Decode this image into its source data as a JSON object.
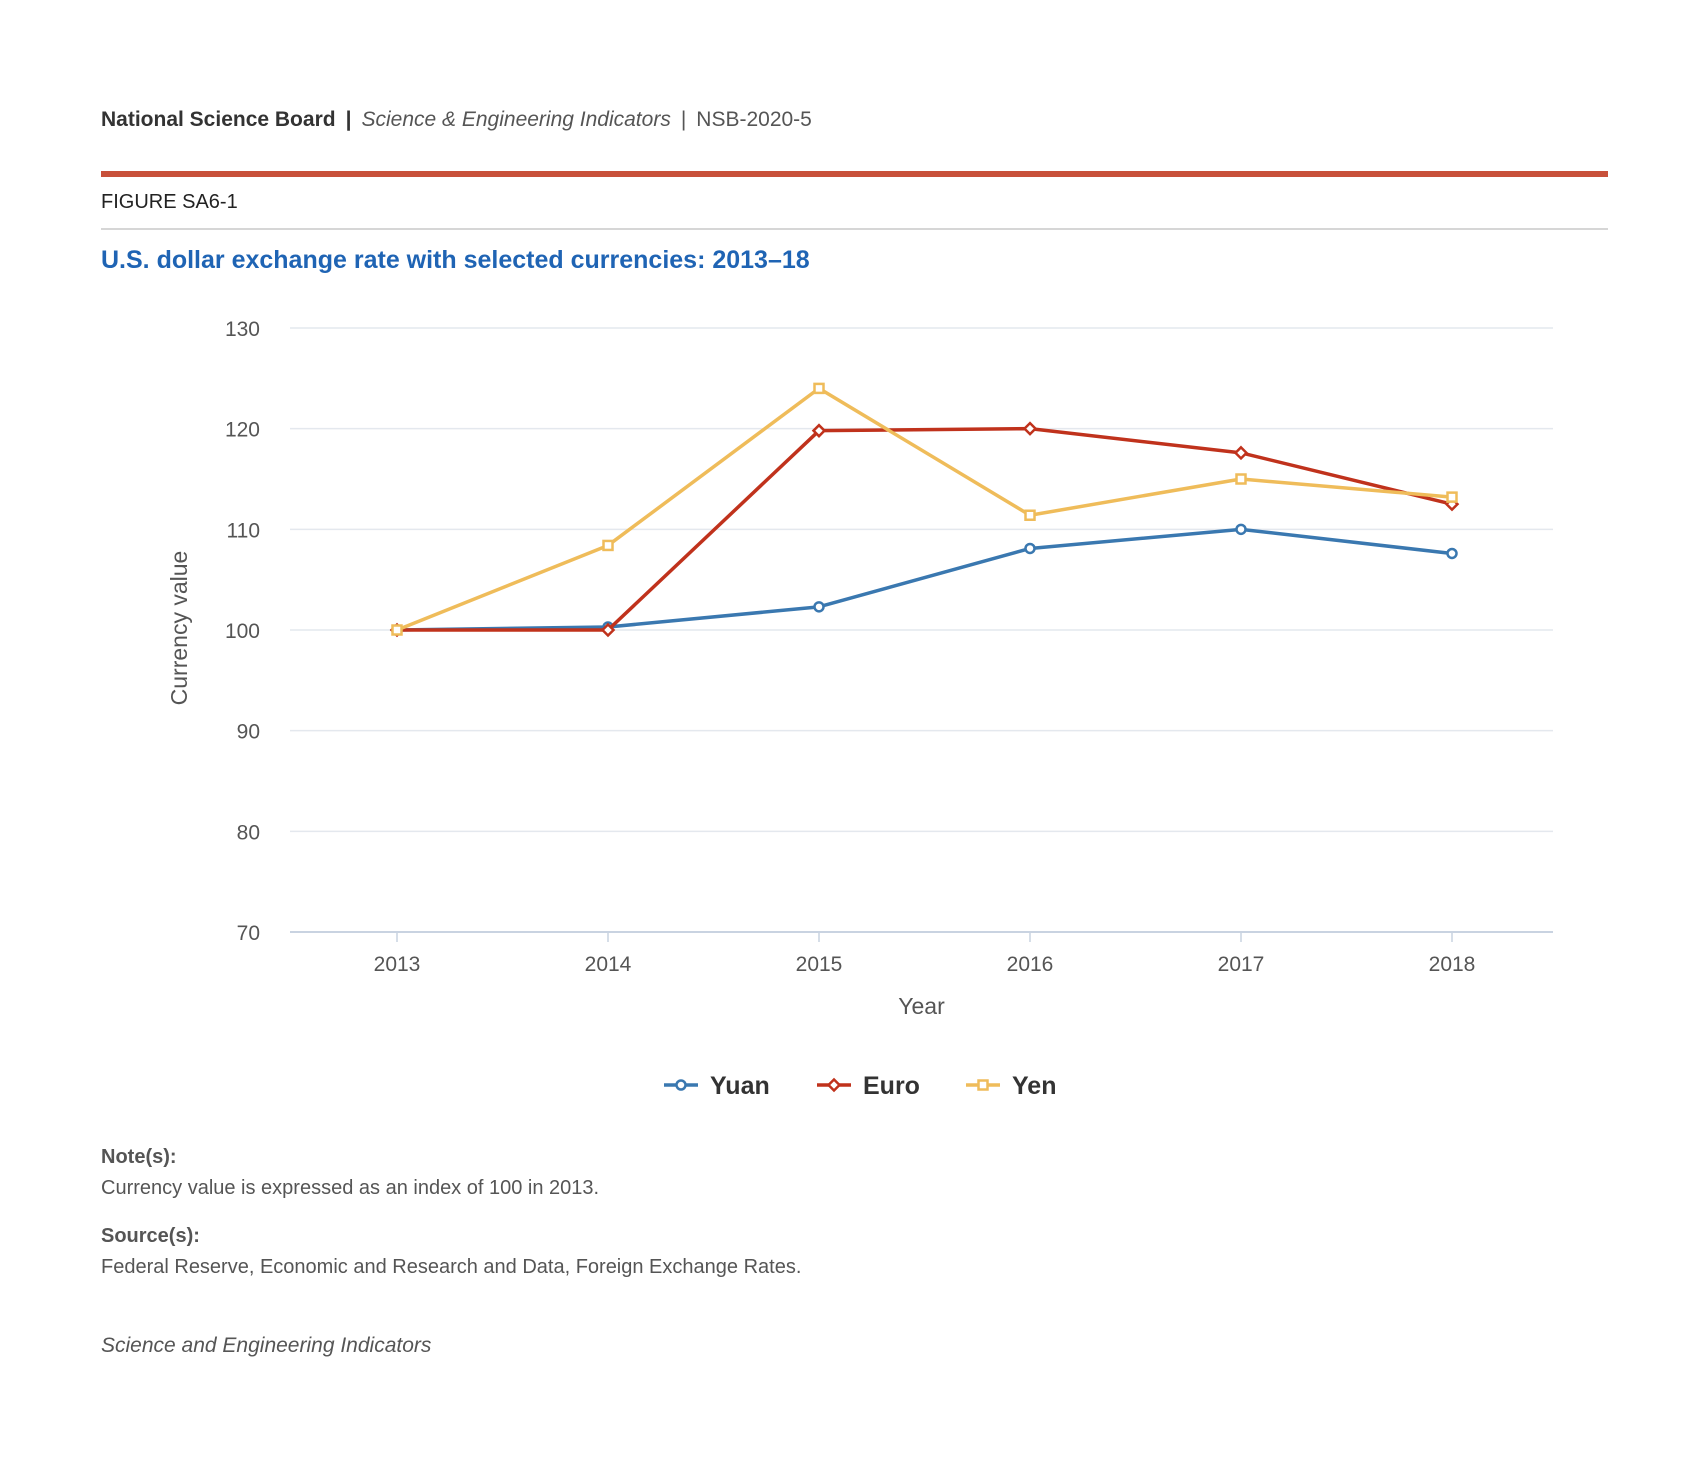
{
  "header": {
    "org": "National Science Board",
    "separator": "|",
    "publication": "Science & Engineering Indicators",
    "code": "NSB-2020-5"
  },
  "figure_label": "FIGURE SA6-1",
  "colors": {
    "accent_rule": "#c8503a",
    "title": "#1f64b4",
    "yuan": "#3a78b0",
    "euro": "#c0321c",
    "yen": "#efbc5a"
  },
  "notes": {
    "note_heading": "Note(s):",
    "note_text": "Currency value is expressed as an index of 100 in 2013.",
    "source_heading": "Source(s):",
    "source_text": "Federal Reserve, Economic and Research and Data, Foreign Exchange Rates."
  },
  "footer": "Science and Engineering Indicators",
  "chart_data": {
    "type": "line",
    "title": "U.S. dollar exchange rate with selected currencies: 2013–18",
    "xlabel": "Year",
    "ylabel": "Currency value",
    "categories": [
      "2013",
      "2014",
      "2015",
      "2016",
      "2017",
      "2018"
    ],
    "ylim": [
      70,
      130
    ],
    "yticks": [
      70,
      80,
      90,
      100,
      110,
      120,
      130
    ],
    "grid": true,
    "legend": "bottom-center",
    "series": [
      {
        "name": "Yuan",
        "marker": "circle",
        "color": "#3a78b0",
        "values": [
          100,
          100.3,
          102.3,
          108.1,
          110,
          107.6
        ]
      },
      {
        "name": "Euro",
        "marker": "diamond",
        "color": "#c0321c",
        "values": [
          100,
          100,
          119.8,
          120,
          117.6,
          112.5
        ]
      },
      {
        "name": "Yen",
        "marker": "square",
        "color": "#efbc5a",
        "values": [
          100,
          108.4,
          124,
          111.4,
          115,
          113.2
        ]
      }
    ]
  }
}
